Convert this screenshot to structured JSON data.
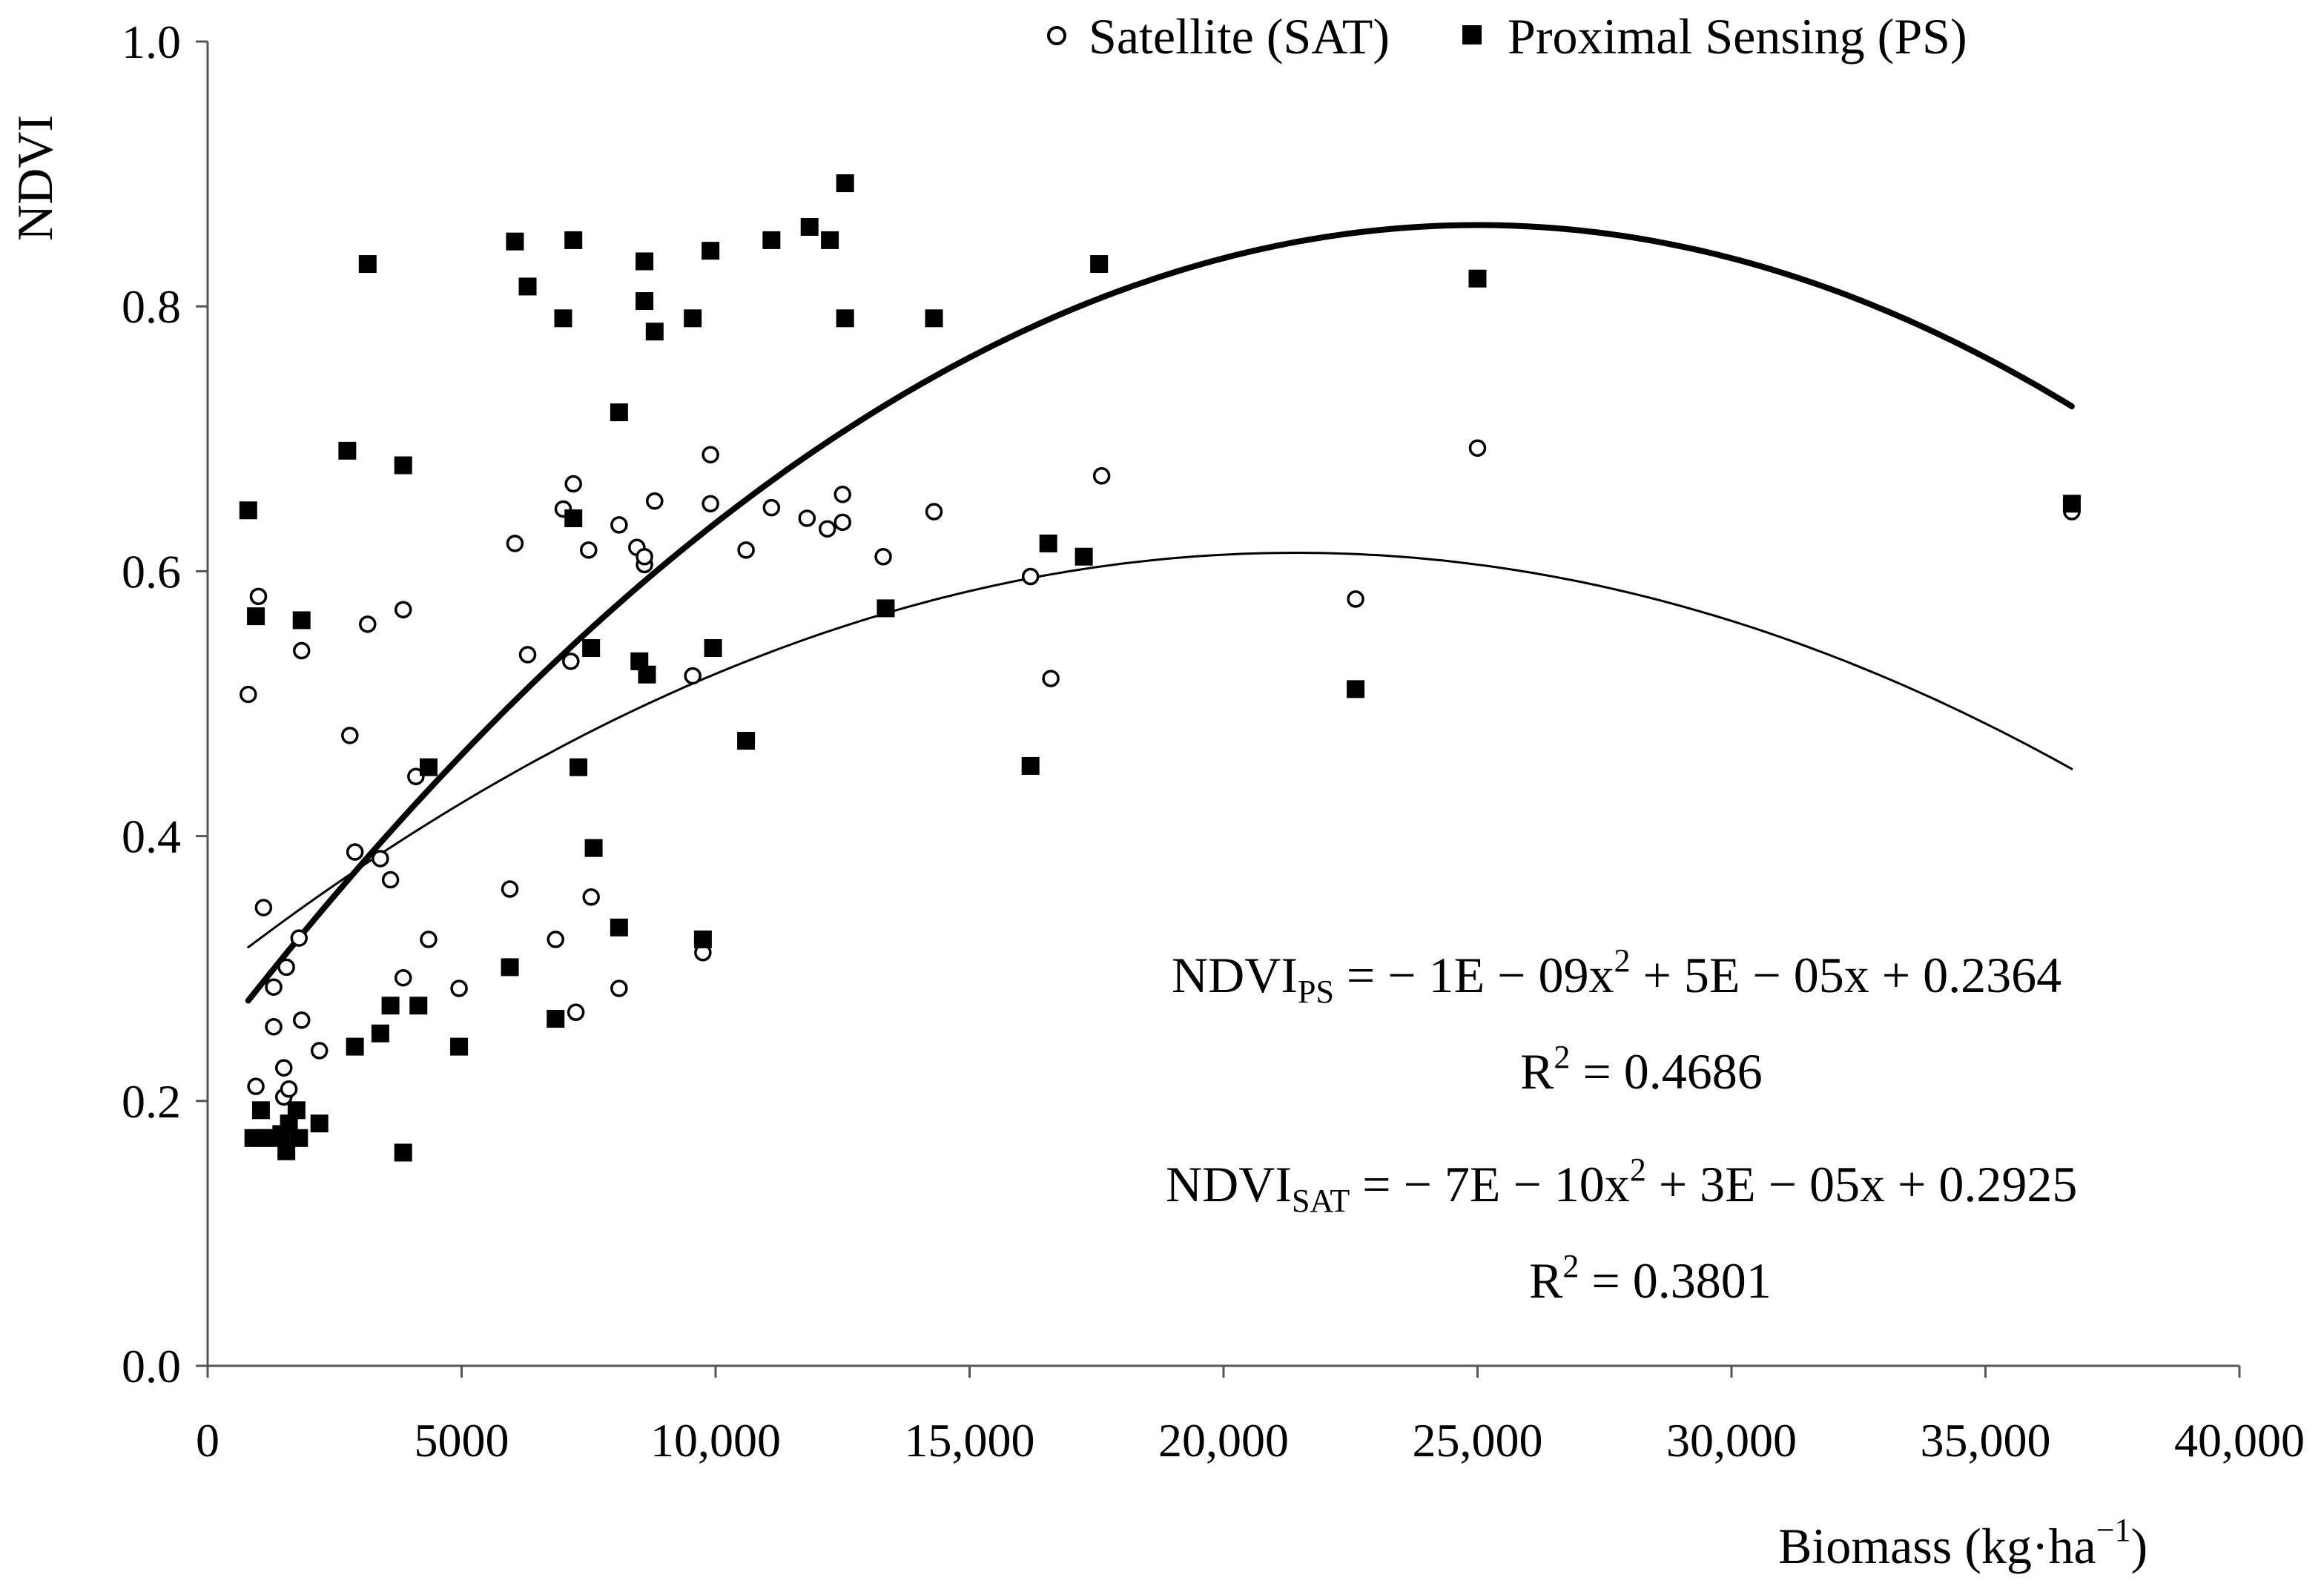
{
  "chart_data": {
    "type": "scatter",
    "title": "",
    "xlabel": "Biomass (kg·ha",
    "xlabel_sup": "−1",
    "xlabel_close": ")",
    "ylabel": "NDVI",
    "xlim": [
      0,
      40000
    ],
    "ylim": [
      0,
      1.0
    ],
    "xticks": [
      0,
      5000,
      10000,
      15000,
      20000,
      25000,
      30000,
      35000,
      40000
    ],
    "xtick_labels": [
      "0",
      "5000",
      "10,000",
      "15,000",
      "20,000",
      "25,000",
      "30,000",
      "35,000",
      "40,000"
    ],
    "yticks": [
      0,
      0.2,
      0.4,
      0.6,
      0.8,
      1.0
    ],
    "ytick_labels": [
      "0.0",
      "0.2",
      "0.4",
      "0.6",
      "0.8",
      "1.0"
    ],
    "legend": [
      {
        "marker": "open-circle",
        "label": "Satellite (SAT)"
      },
      {
        "marker": "filled-square",
        "label": "Proximal Sensing (PS)"
      }
    ],
    "series": [
      {
        "name": "Satellite (SAT)",
        "marker": "open-circle",
        "points": [
          [
            800,
            0.507
          ],
          [
            950,
            0.211
          ],
          [
            1000,
            0.581
          ],
          [
            1100,
            0.346
          ],
          [
            1300,
            0.256
          ],
          [
            1300,
            0.286
          ],
          [
            1500,
            0.225
          ],
          [
            1500,
            0.203
          ],
          [
            1550,
            0.301
          ],
          [
            1600,
            0.209
          ],
          [
            1800,
            0.323
          ],
          [
            1850,
            0.261
          ],
          [
            1850,
            0.54
          ],
          [
            2200,
            0.238
          ],
          [
            2800,
            0.476
          ],
          [
            2900,
            0.388
          ],
          [
            3150,
            0.56
          ],
          [
            3400,
            0.383
          ],
          [
            3600,
            0.367
          ],
          [
            3850,
            0.571
          ],
          [
            3850,
            0.293
          ],
          [
            4100,
            0.445
          ],
          [
            4350,
            0.322
          ],
          [
            4950,
            0.285
          ],
          [
            5950,
            0.36
          ],
          [
            6050,
            0.621
          ],
          [
            6300,
            0.537
          ],
          [
            6850,
            0.322
          ],
          [
            7000,
            0.647
          ],
          [
            7150,
            0.532
          ],
          [
            7200,
            0.666
          ],
          [
            7250,
            0.267
          ],
          [
            7500,
            0.616
          ],
          [
            7550,
            0.354
          ],
          [
            8100,
            0.285
          ],
          [
            8100,
            0.635
          ],
          [
            8450,
            0.618
          ],
          [
            8600,
            0.605
          ],
          [
            8600,
            0.611
          ],
          [
            8800,
            0.653
          ],
          [
            9550,
            0.521
          ],
          [
            9750,
            0.312
          ],
          [
            9900,
            0.688
          ],
          [
            9900,
            0.651
          ],
          [
            10600,
            0.616
          ],
          [
            11100,
            0.648
          ],
          [
            11800,
            0.64
          ],
          [
            12200,
            0.632
          ],
          [
            12500,
            0.658
          ],
          [
            12500,
            0.637
          ],
          [
            13300,
            0.611
          ],
          [
            14300,
            0.645
          ],
          [
            16200,
            0.596
          ],
          [
            16600,
            0.519
          ],
          [
            17600,
            0.672
          ],
          [
            22600,
            0.579
          ],
          [
            25000,
            0.693
          ],
          [
            36700,
            0.645
          ]
        ]
      },
      {
        "name": "Proximal Sensing (PS)",
        "marker": "filled-square",
        "points": [
          [
            800,
            0.646
          ],
          [
            900,
            0.172
          ],
          [
            950,
            0.566
          ],
          [
            1050,
            0.193
          ],
          [
            1100,
            0.172
          ],
          [
            1300,
            0.172
          ],
          [
            1450,
            0.175
          ],
          [
            1550,
            0.162
          ],
          [
            1600,
            0.183
          ],
          [
            1750,
            0.193
          ],
          [
            1800,
            0.172
          ],
          [
            1850,
            0.563
          ],
          [
            2200,
            0.183
          ],
          [
            2750,
            0.691
          ],
          [
            2900,
            0.241
          ],
          [
            3150,
            0.832
          ],
          [
            3400,
            0.251
          ],
          [
            3600,
            0.272
          ],
          [
            3850,
            0.68
          ],
          [
            3850,
            0.161
          ],
          [
            4150,
            0.272
          ],
          [
            4350,
            0.452
          ],
          [
            4950,
            0.241
          ],
          [
            5950,
            0.301
          ],
          [
            6050,
            0.849
          ],
          [
            6300,
            0.815
          ],
          [
            6850,
            0.262
          ],
          [
            7000,
            0.791
          ],
          [
            7200,
            0.85
          ],
          [
            7200,
            0.64
          ],
          [
            7300,
            0.452
          ],
          [
            7550,
            0.542
          ],
          [
            7600,
            0.391
          ],
          [
            8100,
            0.72
          ],
          [
            8100,
            0.331
          ],
          [
            8500,
            0.532
          ],
          [
            8600,
            0.834
          ],
          [
            8600,
            0.804
          ],
          [
            8650,
            0.522
          ],
          [
            8800,
            0.781
          ],
          [
            9550,
            0.791
          ],
          [
            9750,
            0.322
          ],
          [
            9900,
            0.842
          ],
          [
            9950,
            0.542
          ],
          [
            10600,
            0.472
          ],
          [
            11100,
            0.85
          ],
          [
            11850,
            0.86
          ],
          [
            12250,
            0.85
          ],
          [
            12550,
            0.893
          ],
          [
            12550,
            0.791
          ],
          [
            13350,
            0.572
          ],
          [
            14300,
            0.791
          ],
          [
            16200,
            0.453
          ],
          [
            16550,
            0.621
          ],
          [
            17250,
            0.611
          ],
          [
            17550,
            0.832
          ],
          [
            22600,
            0.511
          ],
          [
            25000,
            0.821
          ],
          [
            36700,
            0.651
          ]
        ]
      }
    ],
    "trendlines": [
      {
        "name": "PS fit",
        "coeffs": {
          "a": -1e-09,
          "b": 5e-05,
          "c": 0.2364
        },
        "x_range": [
          800,
          36700
        ],
        "style": "thick"
      },
      {
        "name": "SAT fit",
        "coeffs": {
          "a": -7e-10,
          "b": 3e-05,
          "c": 0.2925
        },
        "x_range": [
          800,
          36700
        ],
        "style": "thin"
      }
    ],
    "annotations": {
      "ps_eq_prefix": "NDVI",
      "ps_eq_sub": "PS",
      "ps_eq_a": " = − 1E − 09x",
      "ps_eq_sup": "2",
      "ps_eq_b": " + 5E − 05x + 0.2364",
      "ps_r2_prefix": "R",
      "ps_r2_sup": "2",
      "ps_r2_value": " = 0.4686",
      "sat_eq_prefix": "NDVI",
      "sat_eq_sub": "SAT",
      "sat_eq_a": " = − 7E − 10x",
      "sat_eq_sup": "2",
      "sat_eq_b": " + 3E − 05x + 0.2925",
      "sat_r2_prefix": "R",
      "sat_r2_sup": "2",
      "sat_r2_value": " = 0.3801"
    }
  }
}
